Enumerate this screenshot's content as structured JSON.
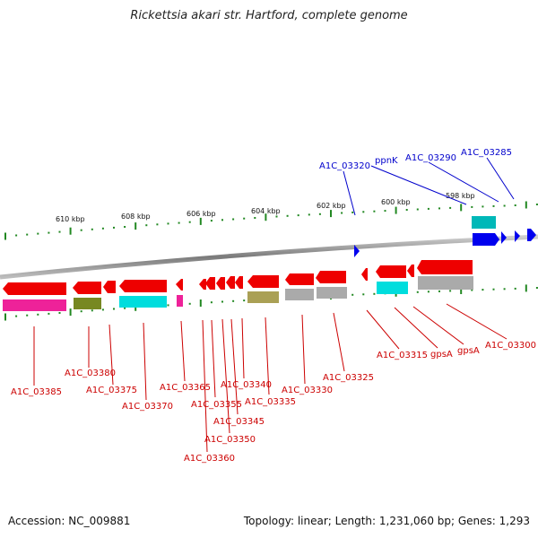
{
  "header": {
    "title": "Rickettsia akari str. Hartford, complete genome"
  },
  "footer": {
    "accession": "Accession: NC_009881",
    "topology": "Topology: linear; Length: 1,231,060 bp; Genes: 1,293"
  },
  "scale_labels": [
    "610 kbp",
    "608 kbp",
    "606 kbp",
    "604 kbp",
    "602 kbp",
    "600 kbp",
    "598 kbp"
  ],
  "genes_reverse": [
    "A1C_03385",
    "A1C_03380",
    "A1C_03375",
    "A1C_03370",
    "A1C_03365",
    "A1C_03360",
    "A1C_03355",
    "A1C_03350",
    "A1C_03345",
    "A1C_03340",
    "A1C_03335",
    "A1C_03330",
    "A1C_03325",
    "A1C_03315",
    "gpsA",
    "gpsA",
    "A1C_03300"
  ],
  "genes_forward": [
    "A1C_03320",
    "ppnK",
    "A1C_03290",
    "A1C_03285"
  ],
  "colors": {
    "reverse_gene": "#ee0000",
    "forward_gene": "#0000ee",
    "label_reverse": "#cc0000",
    "label_forward": "#0000cc",
    "tick": "#228822",
    "backbone": "#888888",
    "cog_magenta": "#ee2299",
    "cog_olive": "#778822",
    "cog_cyan": "#00dddd",
    "cog_khaki": "#aaa055",
    "cog_grey": "#aaaaaa",
    "cog_teal": "#00b8b8"
  }
}
